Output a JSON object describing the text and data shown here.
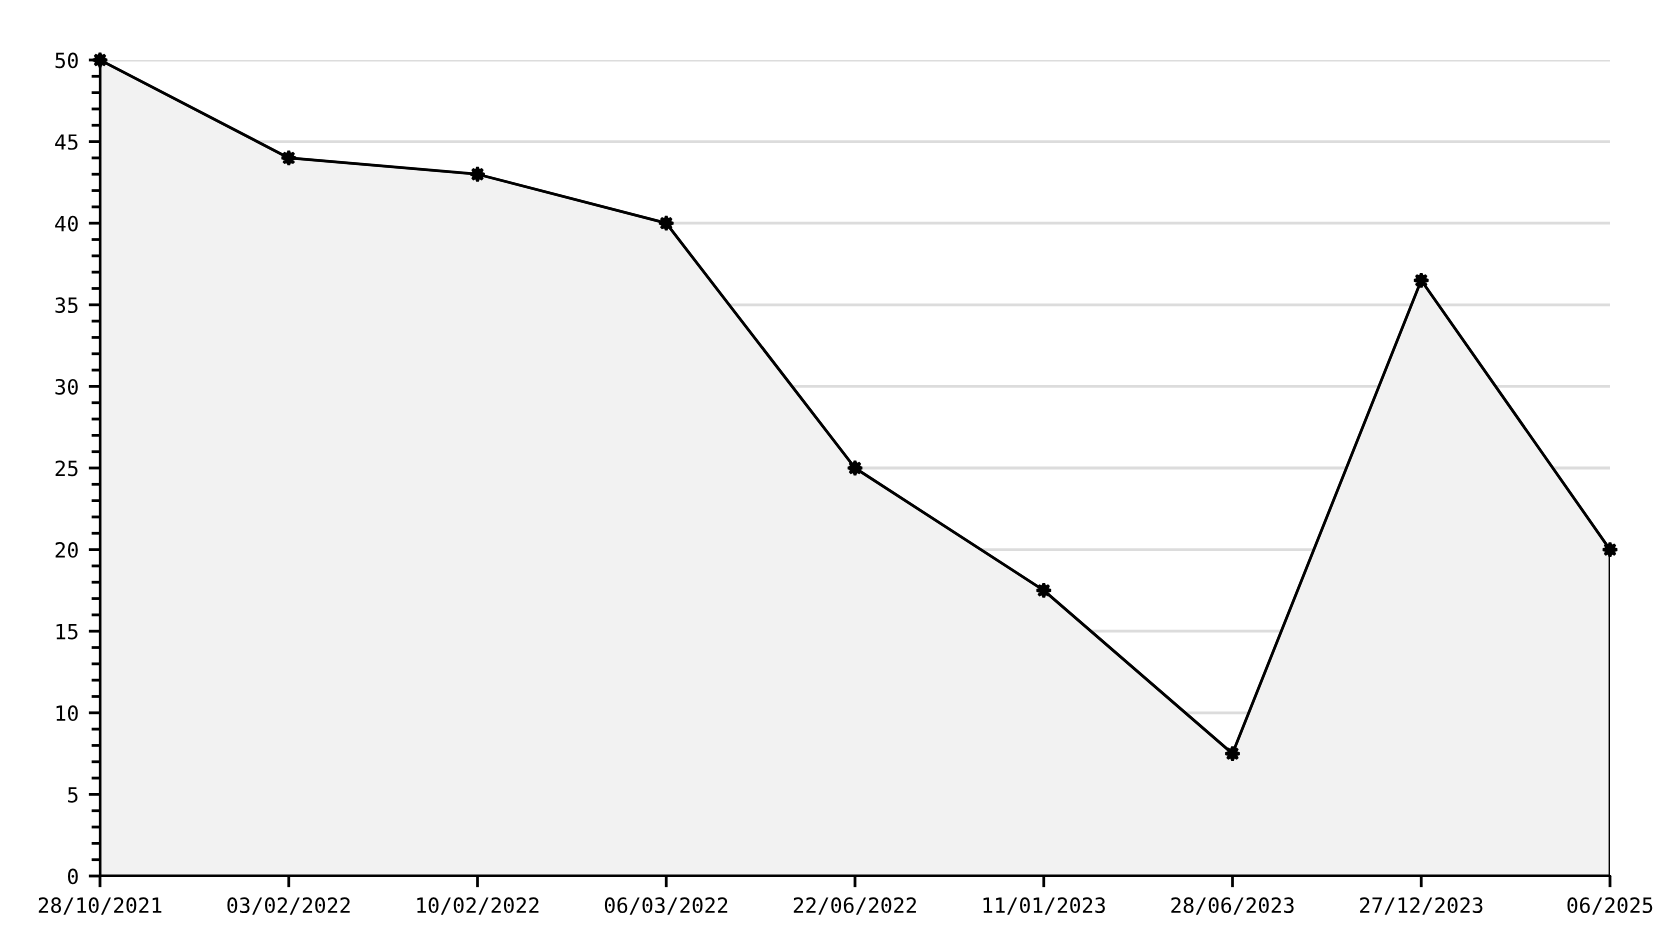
{
  "chart_data": {
    "type": "area",
    "categories": [
      "28/10/2021",
      "03/02/2022",
      "10/02/2022",
      "06/03/2022",
      "22/06/2022",
      "11/01/2023",
      "28/06/2023",
      "27/12/2023",
      "06/2025"
    ],
    "series": [
      {
        "color": "#000000",
        "values": [
          50,
          44,
          43,
          40,
          25,
          17.5,
          7.5,
          36.5,
          20
        ]
      }
    ],
    "ylim": [
      0,
      50
    ],
    "yticks": [
      0,
      5,
      10,
      15,
      20,
      25,
      30,
      35,
      40,
      45,
      50
    ],
    "grid": "y",
    "legend": false,
    "marker": "star",
    "line_style": "solid"
  }
}
